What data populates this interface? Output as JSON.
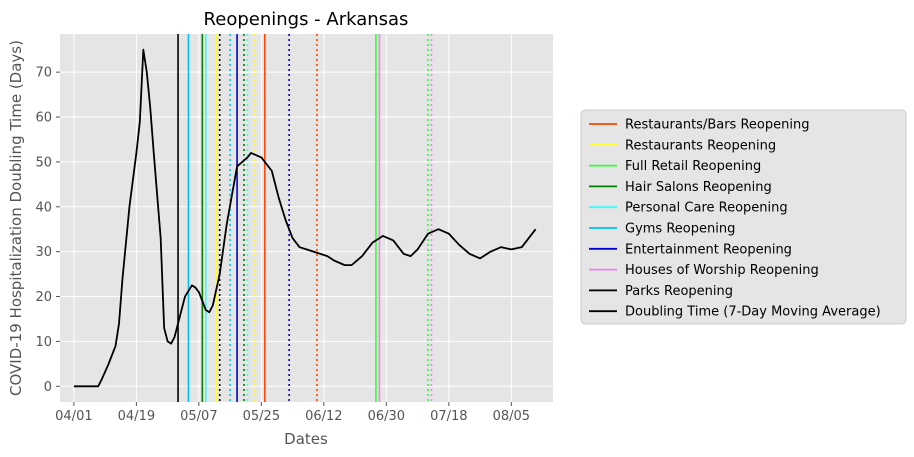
{
  "chart_data": {
    "type": "line",
    "title": "Reopenings - Arkansas",
    "xlabel": "Dates",
    "ylabel": "COVID-19 Hospitalization Doubling Time (Days)",
    "x_tick_labels": [
      "04/01",
      "04/19",
      "05/07",
      "05/25",
      "06/12",
      "06/30",
      "07/18",
      "08/05"
    ],
    "x_tick_dates": [
      "2020-04-01",
      "2020-04-19",
      "2020-05-07",
      "2020-05-25",
      "2020-06-12",
      "2020-06-30",
      "2020-07-18",
      "2020-08-05"
    ],
    "xlim": [
      "2020-03-28",
      "2020-08-17"
    ],
    "y_ticks": [
      0,
      10,
      20,
      30,
      40,
      50,
      60,
      70
    ],
    "ylim": [
      -3.5,
      78.5
    ],
    "grid": true,
    "legend_placement": "outside-right",
    "series": [
      {
        "name": "Doubling Time (7-Day Moving Average)",
        "color": "#000000",
        "points": [
          [
            "2020-04-01",
            0
          ],
          [
            "2020-04-06",
            0
          ],
          [
            "2020-04-08",
            0
          ],
          [
            "2020-04-09",
            1.5
          ],
          [
            "2020-04-11",
            5
          ],
          [
            "2020-04-13",
            9
          ],
          [
            "2020-04-14",
            14
          ],
          [
            "2020-04-15",
            24
          ],
          [
            "2020-04-17",
            40
          ],
          [
            "2020-04-19",
            52
          ],
          [
            "2020-04-20",
            59
          ],
          [
            "2020-04-21",
            75
          ],
          [
            "2020-04-22",
            70
          ],
          [
            "2020-04-23",
            62
          ],
          [
            "2020-04-24",
            52
          ],
          [
            "2020-04-26",
            33
          ],
          [
            "2020-04-27",
            13
          ],
          [
            "2020-04-28",
            10
          ],
          [
            "2020-04-29",
            9.5
          ],
          [
            "2020-04-30",
            11
          ],
          [
            "2020-05-01",
            14
          ],
          [
            "2020-05-03",
            20
          ],
          [
            "2020-05-05",
            22.5
          ],
          [
            "2020-05-06",
            22
          ],
          [
            "2020-05-07",
            21
          ],
          [
            "2020-05-09",
            17
          ],
          [
            "2020-05-10",
            16.5
          ],
          [
            "2020-05-11",
            18
          ],
          [
            "2020-05-13",
            25
          ],
          [
            "2020-05-15",
            36
          ],
          [
            "2020-05-18",
            49
          ],
          [
            "2020-05-21",
            51
          ],
          [
            "2020-05-22",
            52
          ],
          [
            "2020-05-25",
            51
          ],
          [
            "2020-05-28",
            48
          ],
          [
            "2020-05-30",
            42
          ],
          [
            "2020-06-01",
            37
          ],
          [
            "2020-06-03",
            33
          ],
          [
            "2020-06-05",
            31
          ],
          [
            "2020-06-07",
            30.5
          ],
          [
            "2020-06-09",
            30
          ],
          [
            "2020-06-13",
            29
          ],
          [
            "2020-06-15",
            28
          ],
          [
            "2020-06-18",
            27
          ],
          [
            "2020-06-20",
            27
          ],
          [
            "2020-06-23",
            29
          ],
          [
            "2020-06-26",
            32
          ],
          [
            "2020-06-29",
            33.5
          ],
          [
            "2020-07-02",
            32.5
          ],
          [
            "2020-07-05",
            29.5
          ],
          [
            "2020-07-07",
            29
          ],
          [
            "2020-07-09",
            30.5
          ],
          [
            "2020-07-12",
            34
          ],
          [
            "2020-07-15",
            35
          ],
          [
            "2020-07-18",
            34
          ],
          [
            "2020-07-21",
            31.5
          ],
          [
            "2020-07-24",
            29.5
          ],
          [
            "2020-07-27",
            28.5
          ],
          [
            "2020-07-30",
            30
          ],
          [
            "2020-08-02",
            31
          ],
          [
            "2020-08-05",
            30.5
          ],
          [
            "2020-08-08",
            31
          ],
          [
            "2020-08-10",
            33
          ],
          [
            "2020-08-12",
            35
          ]
        ]
      }
    ],
    "vertical_lines": [
      {
        "date": "2020-05-26",
        "color": "#ff4500",
        "style": "solid"
      },
      {
        "date": "2020-06-10",
        "color": "#ff4500",
        "style": "dotted"
      },
      {
        "date": "2020-05-12",
        "color": "#ffff33",
        "style": "solid"
      },
      {
        "date": "2020-05-23",
        "color": "#ffff33",
        "style": "dotted"
      },
      {
        "date": "2020-06-27",
        "color": "#33ff33",
        "style": "solid"
      },
      {
        "date": "2020-07-12",
        "color": "#33ff33",
        "style": "dotted"
      },
      {
        "date": "2020-05-08",
        "color": "#008000",
        "style": "solid"
      },
      {
        "date": "2020-05-20",
        "color": "#008000",
        "style": "dotted"
      },
      {
        "date": "2020-05-09",
        "color": "#33ffff",
        "style": "solid"
      },
      {
        "date": "2020-05-21",
        "color": "#33ffff",
        "style": "dotted"
      },
      {
        "date": "2020-05-04",
        "color": "#00bfff",
        "style": "solid"
      },
      {
        "date": "2020-05-16",
        "color": "#00bfff",
        "style": "dotted"
      },
      {
        "date": "2020-05-18",
        "color": "#0000cd",
        "style": "solid"
      },
      {
        "date": "2020-06-02",
        "color": "#0000cd",
        "style": "dotted"
      },
      {
        "date": "2020-06-28",
        "color": "#ee82ee",
        "style": "solid"
      },
      {
        "date": "2020-07-13",
        "color": "#ee82ee",
        "style": "dotted"
      },
      {
        "date": "2020-05-01",
        "color": "#000000",
        "style": "solid"
      },
      {
        "date": "2020-05-13",
        "color": "#000000",
        "style": "dotted"
      }
    ],
    "legend": [
      {
        "label": "Restaurants/Bars Reopening",
        "color": "#ff4500"
      },
      {
        "label": "Restaurants Reopening",
        "color": "#ffff33"
      },
      {
        "label": "Full Retail Reopening",
        "color": "#33ff33"
      },
      {
        "label": "Hair Salons Reopening",
        "color": "#008000"
      },
      {
        "label": "Personal Care Reopening",
        "color": "#33ffff"
      },
      {
        "label": "Gyms Reopening",
        "color": "#00bfff"
      },
      {
        "label": "Entertainment Reopening",
        "color": "#0000cd"
      },
      {
        "label": "Houses of Worship Reopening",
        "color": "#ee82ee"
      },
      {
        "label": "Parks Reopening",
        "color": "#000000"
      },
      {
        "label": "Doubling Time (7-Day Moving Average)",
        "color": "#000000"
      }
    ],
    "colors": {
      "plot_bg": "#e5e5e5",
      "grid": "#ffffff",
      "axis_text": "#555555"
    }
  }
}
